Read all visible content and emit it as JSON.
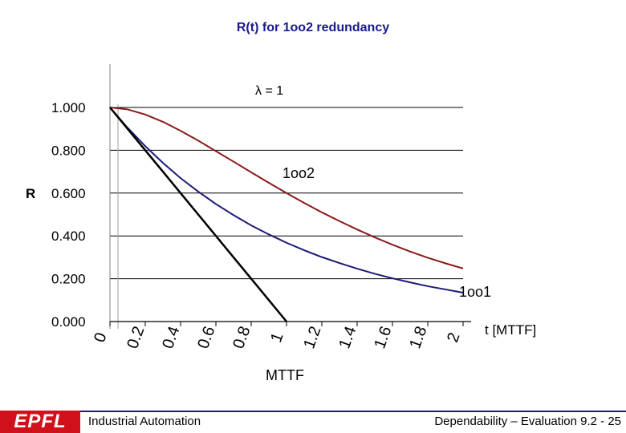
{
  "colors": {
    "title": "#1a1a8c",
    "curve_1oo2": "#8b1a1a",
    "curve_1oo1": "#1a1a7a",
    "approx_line": "#000000",
    "grid": "#000000",
    "footer_line": "#1a1a8c",
    "logo_bg": "#d0101a"
  },
  "chart_data": {
    "type": "line",
    "title": "R(t) for 1oo2 redundancy",
    "subtitle": "λ = 1",
    "xlabel": "t [MTTF]",
    "ylabel": "R",
    "xlim": [
      0,
      2
    ],
    "ylim": [
      0,
      1
    ],
    "grid": "horizontal",
    "x_ticks": [
      "0",
      "0.2",
      "0.4",
      "0.6",
      "0.8",
      "1",
      "1.2",
      "1.4",
      "1.6",
      "1.8",
      "2"
    ],
    "y_ticks": [
      "0.000",
      "0.200",
      "0.400",
      "0.600",
      "0.800",
      "1.000"
    ],
    "x": [
      0,
      0.1,
      0.2,
      0.3,
      0.4,
      0.5,
      0.6,
      0.7,
      0.8,
      0.9,
      1.0,
      1.1,
      1.2,
      1.3,
      1.4,
      1.5,
      1.6,
      1.7,
      1.8,
      1.9,
      2.0
    ],
    "series": [
      {
        "name": "1oo2",
        "values": [
          1.0,
          0.991,
          0.967,
          0.933,
          0.891,
          0.845,
          0.796,
          0.747,
          0.697,
          0.648,
          0.6,
          0.554,
          0.51,
          0.469,
          0.43,
          0.393,
          0.359,
          0.327,
          0.298,
          0.272,
          0.248
        ]
      },
      {
        "name": "1oo1",
        "values": [
          1.0,
          0.905,
          0.819,
          0.741,
          0.67,
          0.607,
          0.549,
          0.497,
          0.449,
          0.407,
          0.368,
          0.333,
          0.301,
          0.273,
          0.247,
          0.223,
          0.202,
          0.183,
          0.165,
          0.15,
          0.135
        ]
      },
      {
        "name": "",
        "values": [
          1.0,
          0.9,
          0.8,
          0.7,
          0.6,
          0.5,
          0.4,
          0.3,
          0.2,
          0.1,
          0.0,
          null,
          null,
          null,
          null,
          null,
          null,
          null,
          null,
          null,
          null
        ]
      }
    ],
    "annotations": [
      {
        "text": "MTTF",
        "x": 1.0,
        "y": 0
      }
    ]
  },
  "footer": {
    "logo": "EPFL",
    "left": "Industrial Automation",
    "right": "Dependability – Evaluation 9.2 - 25"
  }
}
